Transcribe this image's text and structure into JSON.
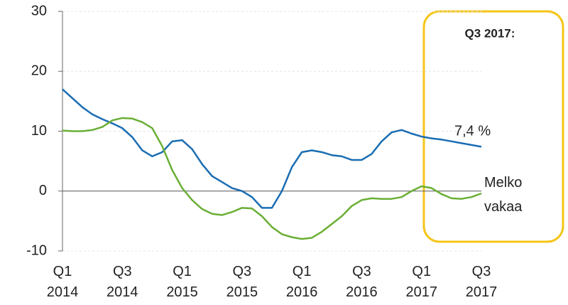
{
  "chart_data": {
    "type": "line",
    "categories": [
      "Q1 2014",
      null,
      null,
      null,
      null,
      null,
      "Q3 2014",
      null,
      null,
      null,
      null,
      null,
      "Q1 2015",
      null,
      null,
      null,
      null,
      null,
      "Q3 2015",
      null,
      null,
      null,
      null,
      null,
      "Q1 2016",
      null,
      null,
      null,
      null,
      null,
      "Q3 2016",
      null,
      null,
      null,
      null,
      null,
      "Q1 2017",
      null,
      null,
      null,
      null,
      null,
      "Q3 2017"
    ],
    "series": [
      {
        "color": "#1a6db3",
        "values": [
          17,
          15.5,
          14,
          12.8,
          12,
          11.3,
          10.5,
          9,
          6.8,
          5.8,
          6.5,
          8.3,
          8.5,
          7,
          4.5,
          2.5,
          1.5,
          0.5,
          0,
          -1,
          -2.8,
          -2.8,
          0,
          4,
          6.5,
          6.8,
          6.5,
          6,
          5.8,
          5.2,
          5.2,
          6.2,
          8.3,
          9.8,
          10.2,
          9.6,
          9.1,
          8.8,
          8.6,
          8.3,
          8,
          7.7,
          7.4
        ]
      },
      {
        "color": "#6aaf35",
        "values": [
          10.1,
          10,
          10,
          10.2,
          10.7,
          11.8,
          12.2,
          12.1,
          11.5,
          10.5,
          7.5,
          3.5,
          0.5,
          -1.5,
          -3,
          -3.8,
          -4,
          -3.5,
          -2.8,
          -2.9,
          -4.2,
          -6,
          -7.2,
          -7.7,
          -8,
          -7.8,
          -6.8,
          -5.5,
          -4.2,
          -2.5,
          -1.5,
          -1.2,
          -1.3,
          -1.3,
          -1,
          0,
          0.8,
          0.5,
          -0.5,
          -1.2,
          -1.3,
          -1,
          -0.4
        ]
      }
    ],
    "ylim": [
      -10,
      30
    ],
    "yticks": [
      -10,
      0,
      10,
      20,
      30
    ],
    "grid": true,
    "highlight_color": "#f5c518",
    "annotations": [
      "Q3 2017:",
      "7,4 %",
      "Melko vakaa"
    ]
  }
}
